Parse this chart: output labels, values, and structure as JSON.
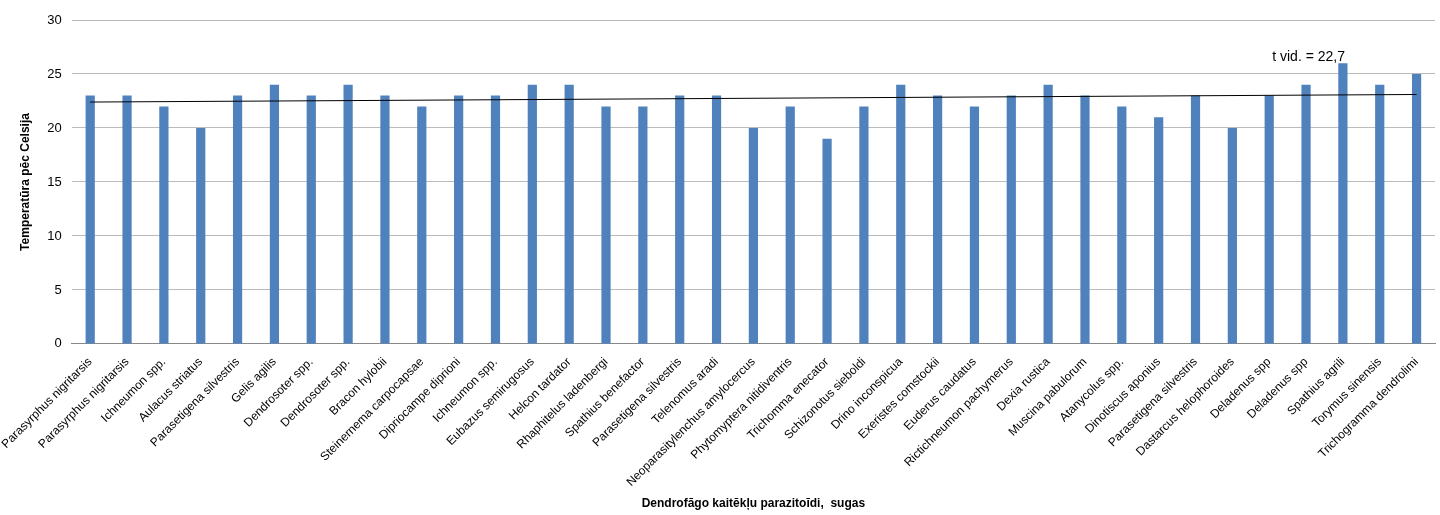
{
  "chart_data": {
    "type": "bar",
    "xlabel": "Dendrofāgo kaitēkļu parazitoīdi,  sugas",
    "ylabel": "Temperatūra pēc Celsija",
    "categories": [
      "Parasyrphus nigritarsis",
      "Parasyrphus nigritarsis",
      "Ichneumon spp.",
      "Aulacus striatus",
      "Parasetigena silvestris",
      "Gelis agilis",
      "Dendrosoter spp.",
      "Dendrosoter spp.",
      "Bracon hylobii",
      "Steinernema carpocapsae",
      "Dipriocampe diprioni",
      "Ichneumon spp.",
      "Eubazus semirugosus",
      "Helcon tardator",
      "Rhaphitelus ladenbergi",
      "Spathius benefactor",
      "Parasetigena silvestris",
      "Telenomus aradi",
      "Neoparasitylenchus amylocercus",
      "Phytomyptera nitidiventris",
      "Trichomma enecator",
      "Schizonotus sieboldi",
      "Drino inconspicua",
      "Exeristes comstockii",
      "Euderus caudatus",
      "Rictichneumon pachymerus",
      "Dexia rustica",
      "Muscina pabulorum",
      "Atanycolus spp.",
      "Dinotiscus aponius",
      "Parasetigena silvestris",
      "Dastarcus helophoroides",
      "Deladenus spp",
      "Deladenus spp",
      "Spathius agrili",
      "Torymus sinensis",
      "Trichogramma dendrolimi"
    ],
    "series": [
      {
        "color": "#4f81bd",
        "values": [
          23,
          23,
          22,
          20,
          23,
          24,
          23,
          24,
          23,
          22,
          23,
          23,
          24,
          24,
          22,
          22,
          23,
          23,
          20,
          22,
          19,
          22,
          24,
          23,
          22,
          23,
          24,
          23,
          22,
          21,
          23,
          20,
          23,
          24,
          26,
          24,
          25
        ]
      },
      {
        "type": "line",
        "color": "#000000",
        "x": [
          "Parasyrphus nigritarsis",
          "Trichogramma dendrolimi"
        ],
        "values": [
          22.4,
          23.1
        ]
      }
    ],
    "ylim": [
      0,
      30
    ],
    "yticks": [
      0,
      5,
      10,
      15,
      20,
      25,
      30
    ],
    "grid": "y",
    "legend": false,
    "marker": "none",
    "annotations": [
      "t vid. = 22,7"
    ]
  }
}
